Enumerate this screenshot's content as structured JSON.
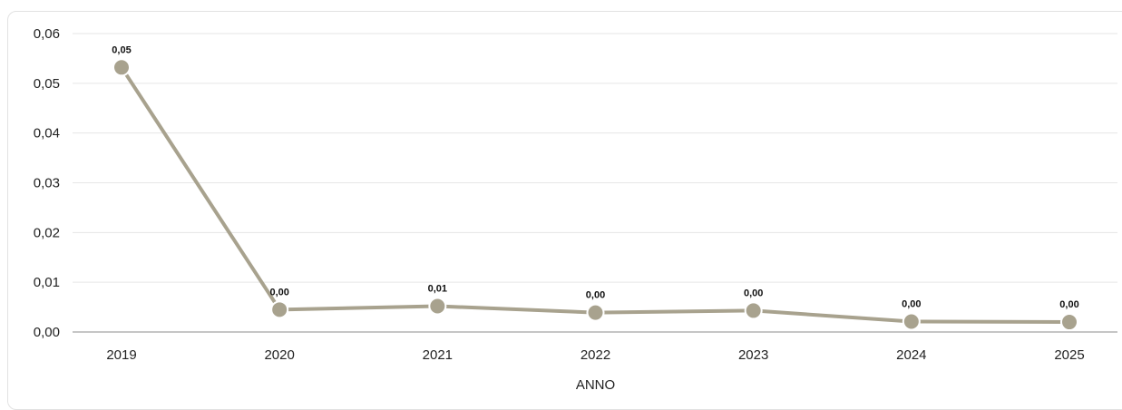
{
  "chart_data": {
    "type": "line",
    "title": "",
    "xlabel": "ANNO",
    "ylabel": "",
    "categories": [
      "2019",
      "2020",
      "2021",
      "2022",
      "2023",
      "2024",
      "2025"
    ],
    "series": [
      {
        "values": [
          0.0532,
          0.0045,
          0.0052,
          0.0039,
          0.0043,
          0.0021,
          0.002
        ],
        "data_labels": [
          "0,05",
          "0,00",
          "0,01",
          "0,00",
          "0,00",
          "0,00",
          "0,00"
        ],
        "color": "#a8a28e"
      }
    ],
    "yticks": [
      "0,00",
      "0,01",
      "0,02",
      "0,03",
      "0,04",
      "0,05",
      "0,06"
    ],
    "ylim": [
      0,
      0.06
    ],
    "grid": true,
    "legend": "none"
  }
}
